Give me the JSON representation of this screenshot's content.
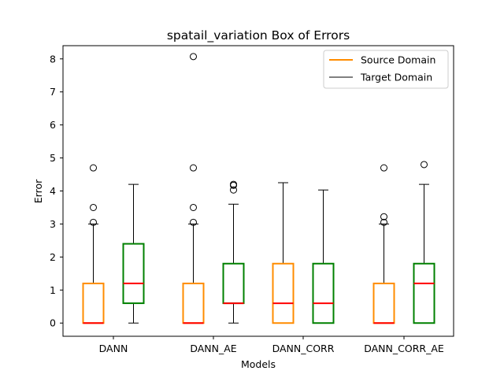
{
  "chart_data": {
    "type": "box",
    "title": "spatail_variation Box of Errors",
    "xlabel": "Models",
    "ylabel": "Error",
    "ylim": [
      -0.4,
      8.4
    ],
    "yticks": [
      0,
      1,
      2,
      3,
      4,
      5,
      6,
      7,
      8
    ],
    "categories": [
      "DANN",
      "DANN_AE",
      "DANN_CORR",
      "DANN_CORR_AE"
    ],
    "legend_placement": "top-right",
    "grid": false,
    "series": [
      {
        "name": "Source Domain",
        "box_color": "#ff8c00",
        "median_color": "#ff0000",
        "legend_color": "#ff8c00",
        "boxes": [
          {
            "q1": 0,
            "median": 0,
            "q3": 1.2,
            "whisker_low": 0,
            "whisker_high": 3.0,
            "outliers": [
              3.05,
              3.5,
              4.7
            ]
          },
          {
            "q1": 0,
            "median": 0,
            "q3": 1.2,
            "whisker_low": 0,
            "whisker_high": 3.0,
            "outliers": [
              3.05,
              3.5,
              4.7,
              8.07
            ]
          },
          {
            "q1": 0,
            "median": 0.6,
            "q3": 1.8,
            "whisker_low": 0,
            "whisker_high": 4.25,
            "outliers": []
          },
          {
            "q1": 0,
            "median": 0,
            "q3": 1.2,
            "whisker_low": 0,
            "whisker_high": 3.0,
            "outliers": [
              3.05,
              3.22,
              4.7
            ]
          }
        ]
      },
      {
        "name": "Target Domain",
        "box_color": "#008000",
        "median_color": "#ff0000",
        "legend_color": "#000000",
        "boxes": [
          {
            "q1": 0.6,
            "median": 1.2,
            "q3": 2.4,
            "whisker_low": 0,
            "whisker_high": 4.2,
            "outliers": []
          },
          {
            "q1": 0.6,
            "median": 0.6,
            "q3": 1.8,
            "whisker_low": 0,
            "whisker_high": 3.6,
            "outliers": [
              4.03,
              4.17,
              4.2
            ]
          },
          {
            "q1": 0,
            "median": 0.6,
            "q3": 1.8,
            "whisker_low": 0,
            "whisker_high": 4.03,
            "outliers": []
          },
          {
            "q1": 0,
            "median": 1.2,
            "q3": 1.8,
            "whisker_low": 0,
            "whisker_high": 4.2,
            "outliers": [
              4.8
            ]
          }
        ]
      }
    ]
  }
}
